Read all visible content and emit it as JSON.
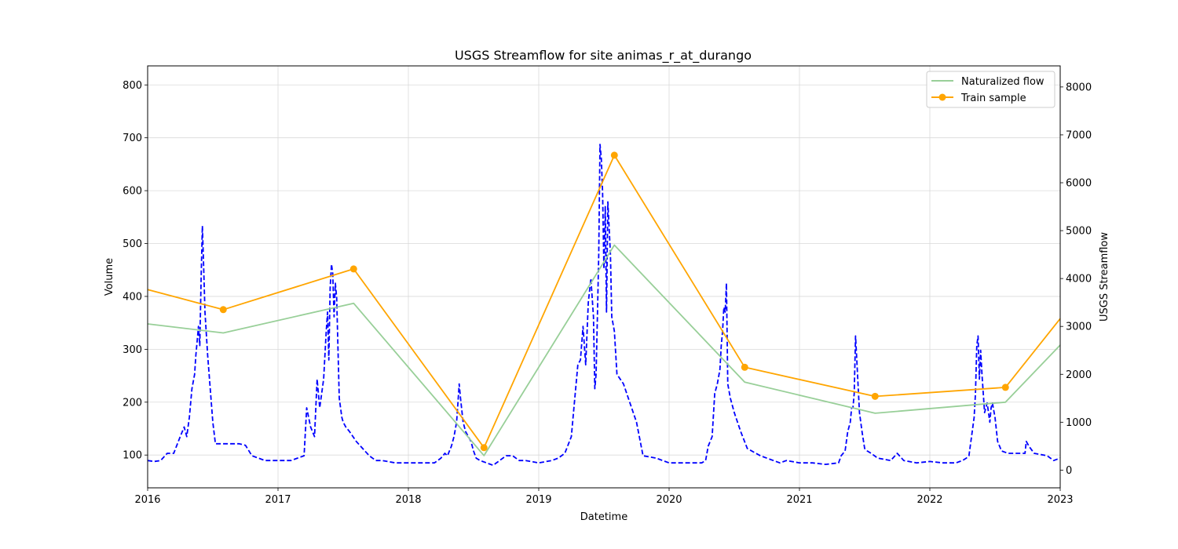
{
  "chart_data": {
    "type": "line",
    "title": "USGS Streamflow for site animas_r_at_durango",
    "xlabel": "Datetime",
    "ylabel": "Volume",
    "y2label": "USGS Streamflow",
    "xlim": [
      2016,
      2023
    ],
    "ylim": [
      38,
      836
    ],
    "y2lim": [
      -370,
      8440
    ],
    "xticks": [
      "2016",
      "2017",
      "2018",
      "2019",
      "2020",
      "2021",
      "2022",
      "2023"
    ],
    "yticks": [
      100,
      200,
      300,
      400,
      500,
      600,
      700,
      800
    ],
    "y2ticks": [
      0,
      1000,
      2000,
      3000,
      4000,
      5000,
      6000,
      7000,
      8000
    ],
    "grid": true,
    "legend_position": "top-right",
    "colors": {
      "naturalized": "#98cf98",
      "train": "#ffa500",
      "usgs": "#0000ff",
      "grid": "#d9d9d9"
    },
    "series": [
      {
        "name": "Naturalized flow",
        "axis": "left",
        "style": "line",
        "x": [
          2016.0,
          2016.58,
          2017.58,
          2018.58,
          2019.58,
          2020.58,
          2021.58,
          2022.58,
          2023.0
        ],
        "values": [
          348,
          331,
          387,
          99,
          497,
          238,
          179,
          200,
          308
        ]
      },
      {
        "name": "Train sample",
        "axis": "left",
        "style": "line-marker",
        "x": [
          2016.0,
          2016.58,
          2017.58,
          2018.58,
          2019.58,
          2020.58,
          2021.58,
          2022.58,
          2023.0
        ],
        "values": [
          413,
          375,
          452,
          114,
          667,
          266,
          211,
          228,
          358
        ],
        "marker_x": [
          2016.58,
          2017.58,
          2018.58,
          2019.58,
          2020.58,
          2021.58,
          2022.58
        ],
        "marker_values": [
          375,
          452,
          114,
          667,
          266,
          211,
          228
        ]
      },
      {
        "axis": "right",
        "style": "dashed",
        "x": [
          2016.0,
          2016.05,
          2016.1,
          2016.15,
          2016.2,
          2016.25,
          2016.28,
          2016.3,
          2016.32,
          2016.34,
          2016.36,
          2016.37,
          2016.38,
          2016.39,
          2016.4,
          2016.41,
          2016.42,
          2016.43,
          2016.44,
          2016.46,
          2016.48,
          2016.5,
          2016.52,
          2016.55,
          2016.6,
          2016.7,
          2016.75,
          2016.8,
          2016.85,
          2016.9,
          2017.0,
          2017.1,
          2017.15,
          2017.2,
          2017.22,
          2017.25,
          2017.28,
          2017.3,
          2017.32,
          2017.35,
          2017.37,
          2017.38,
          2017.39,
          2017.4,
          2017.41,
          2017.42,
          2017.43,
          2017.44,
          2017.45,
          2017.47,
          2017.49,
          2017.5,
          2017.52,
          2017.55,
          2017.6,
          2017.7,
          2017.75,
          2017.8,
          2017.9,
          2018.0,
          2018.1,
          2018.2,
          2018.25,
          2018.28,
          2018.3,
          2018.33,
          2018.35,
          2018.37,
          2018.38,
          2018.39,
          2018.4,
          2018.42,
          2018.44,
          2018.46,
          2018.48,
          2018.5,
          2018.52,
          2018.55,
          2018.6,
          2018.65,
          2018.75,
          2018.8,
          2018.85,
          2018.9,
          2019.0,
          2019.1,
          2019.15,
          2019.2,
          2019.25,
          2019.27,
          2019.3,
          2019.32,
          2019.34,
          2019.36,
          2019.38,
          2019.4,
          2019.42,
          2019.43,
          2019.44,
          2019.45,
          2019.46,
          2019.47,
          2019.48,
          2019.49,
          2019.5,
          2019.51,
          2019.52,
          2019.53,
          2019.55,
          2019.56,
          2019.58,
          2019.6,
          2019.65,
          2019.7,
          2019.75,
          2019.8,
          2019.9,
          2020.0,
          2020.1,
          2020.2,
          2020.25,
          2020.28,
          2020.3,
          2020.33,
          2020.35,
          2020.37,
          2020.39,
          2020.4,
          2020.41,
          2020.42,
          2020.43,
          2020.44,
          2020.45,
          2020.47,
          2020.5,
          2020.55,
          2020.6,
          2020.7,
          2020.8,
          2020.85,
          2020.9,
          2021.0,
          2021.1,
          2021.2,
          2021.3,
          2021.32,
          2021.35,
          2021.37,
          2021.39,
          2021.4,
          2021.41,
          2021.42,
          2021.43,
          2021.44,
          2021.46,
          2021.48,
          2021.5,
          2021.52,
          2021.55,
          2021.6,
          2021.7,
          2021.75,
          2021.8,
          2021.9,
          2022.0,
          2022.1,
          2022.2,
          2022.25,
          2022.28,
          2022.3,
          2022.32,
          2022.34,
          2022.35,
          2022.36,
          2022.37,
          2022.38,
          2022.39,
          2022.4,
          2022.42,
          2022.44,
          2022.46,
          2022.47,
          2022.48,
          2022.5,
          2022.52,
          2022.55,
          2022.6,
          2022.7,
          2022.73,
          2022.74,
          2022.76,
          2022.8,
          2022.9,
          2022.95,
          2023.0
        ],
        "values": [
          200,
          180,
          200,
          350,
          350,
          700,
          900,
          700,
          1100,
          1700,
          2000,
          2400,
          2700,
          3000,
          2600,
          4000,
          5100,
          4200,
          3300,
          2400,
          1700,
          1000,
          550,
          550,
          550,
          550,
          520,
          300,
          250,
          200,
          200,
          200,
          250,
          300,
          1300,
          900,
          700,
          1900,
          1300,
          1900,
          2900,
          3300,
          2300,
          3800,
          4300,
          4100,
          3200,
          3900,
          3600,
          1500,
          1100,
          1000,
          900,
          800,
          600,
          300,
          200,
          200,
          150,
          150,
          150,
          150,
          250,
          350,
          300,
          500,
          700,
          1000,
          1400,
          1800,
          1500,
          1000,
          800,
          700,
          600,
          400,
          250,
          200,
          150,
          100,
          300,
          300,
          200,
          200,
          150,
          200,
          250,
          350,
          700,
          1300,
          2200,
          2300,
          3000,
          2200,
          3500,
          4000,
          3200,
          1700,
          2000,
          3200,
          4500,
          6800,
          6500,
          5800,
          4200,
          5500,
          3300,
          5600,
          4500,
          3200,
          2900,
          2000,
          1800,
          1400,
          1000,
          300,
          250,
          150,
          150,
          150,
          150,
          200,
          500,
          700,
          1600,
          1800,
          2100,
          2600,
          2900,
          3400,
          3300,
          3900,
          1800,
          1500,
          1200,
          800,
          450,
          300,
          200,
          150,
          200,
          150,
          150,
          120,
          150,
          300,
          400,
          800,
          1000,
          1300,
          1300,
          1600,
          2800,
          2300,
          1200,
          800,
          450,
          400,
          350,
          250,
          200,
          350,
          200,
          150,
          180,
          150,
          150,
          200,
          250,
          300,
          700,
          1100,
          1600,
          2600,
          2800,
          1900,
          2500,
          2000,
          1200,
          1400,
          1000,
          1300,
          1400,
          1100,
          600,
          400,
          350,
          350,
          350,
          600,
          500,
          350,
          300,
          200,
          250
        ]
      }
    ]
  }
}
